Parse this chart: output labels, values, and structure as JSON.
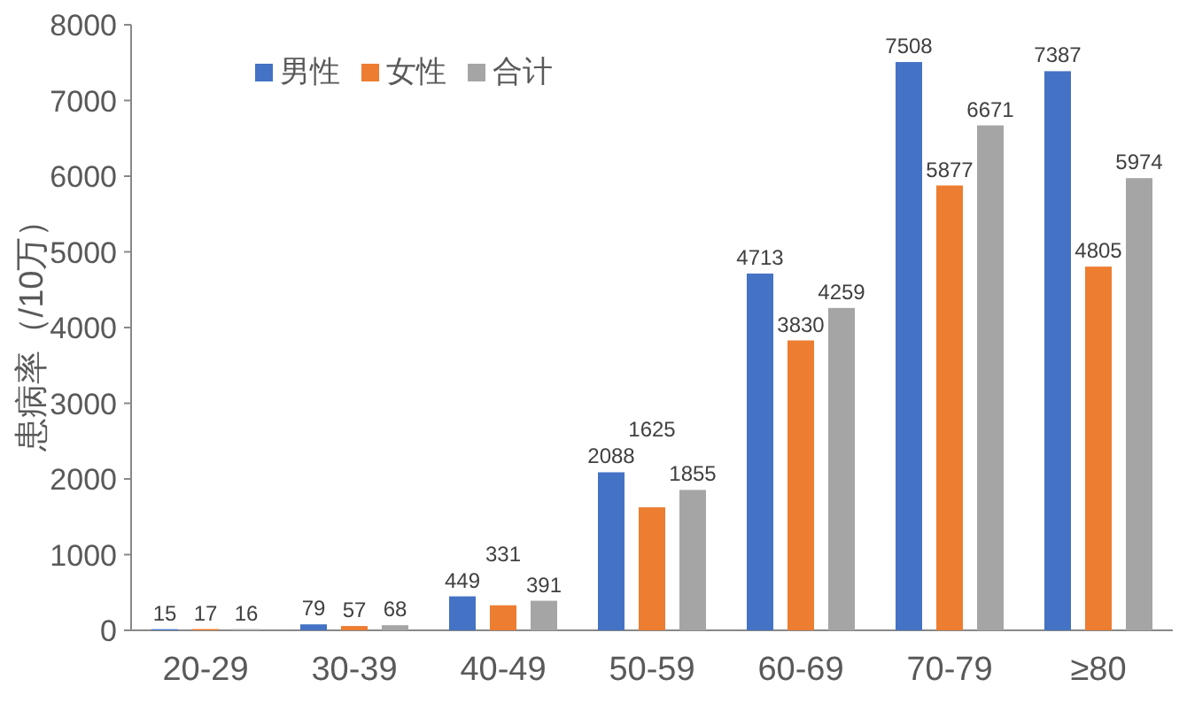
{
  "chart_data": {
    "type": "bar",
    "ylabel": "患病率（/10万）",
    "categories": [
      "20-29",
      "30-39",
      "40-49",
      "50-59",
      "60-69",
      "70-79",
      "≥80"
    ],
    "series": [
      {
        "name": "男性",
        "color": "#4472c4",
        "values": [
          15,
          79,
          449,
          2088,
          4713,
          7508,
          7387
        ]
      },
      {
        "name": "女性",
        "color": "#ed7d31",
        "values": [
          17,
          57,
          331,
          1625,
          3830,
          5877,
          4805
        ]
      },
      {
        "name": "合计",
        "color": "#a5a5a5",
        "values": [
          16,
          68,
          391,
          1855,
          4259,
          6671,
          5974
        ]
      }
    ],
    "ylim": [
      0,
      8000
    ],
    "yticks": [
      0,
      1000,
      2000,
      3000,
      4000,
      5000,
      6000,
      7000,
      8000
    ],
    "data_labels": true,
    "legend": "top left"
  }
}
